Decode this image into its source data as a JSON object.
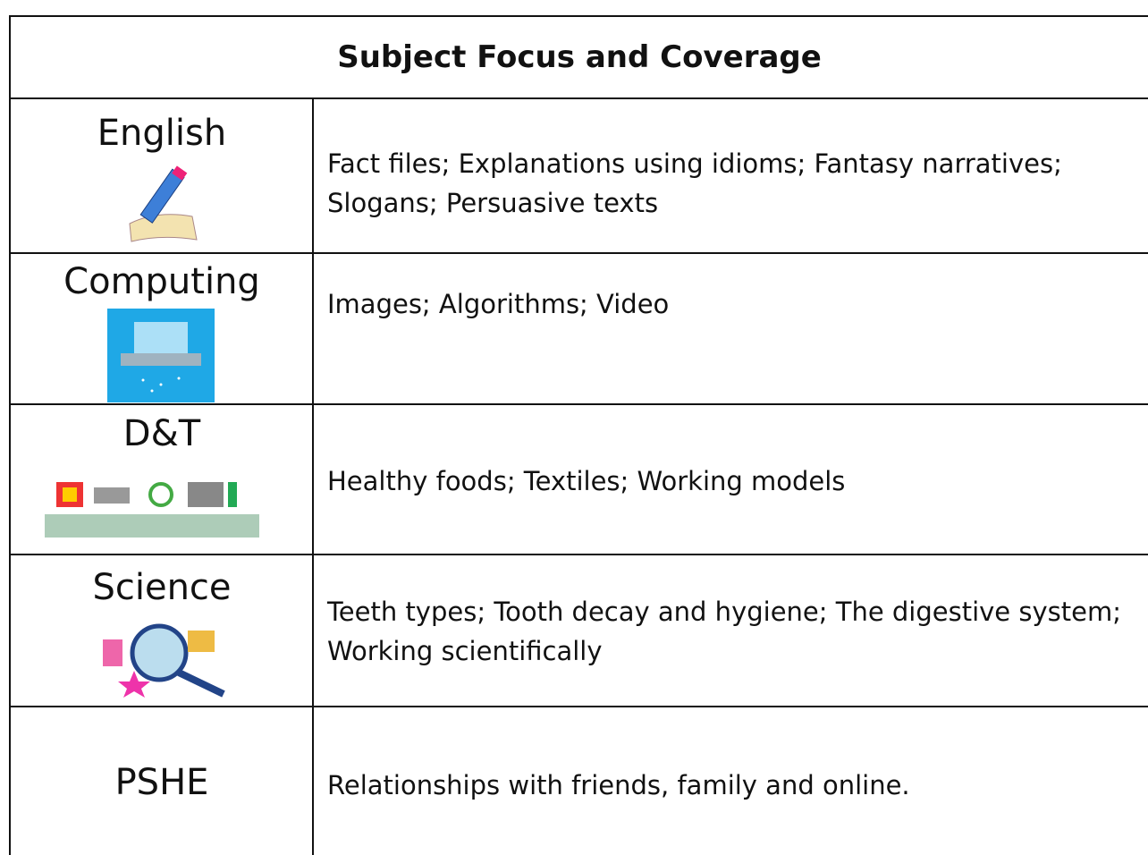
{
  "table": {
    "title": "Subject Focus and Coverage",
    "rows": [
      {
        "subject": "English",
        "coverage": "Fact files; Explanations using idioms; Fantasy narratives; Slogans; Persuasive texts"
      },
      {
        "subject": "Computing",
        "coverage": "Images; Algorithms; Video"
      },
      {
        "subject": "D&T",
        "coverage": "Healthy foods; Textiles; Working models"
      },
      {
        "subject": "Science",
        "coverage": "Teeth types; Tooth decay and hygiene; The digestive system; Working scientifically"
      },
      {
        "subject": "PSHE",
        "coverage": "Relationships with friends, family and online."
      }
    ]
  }
}
